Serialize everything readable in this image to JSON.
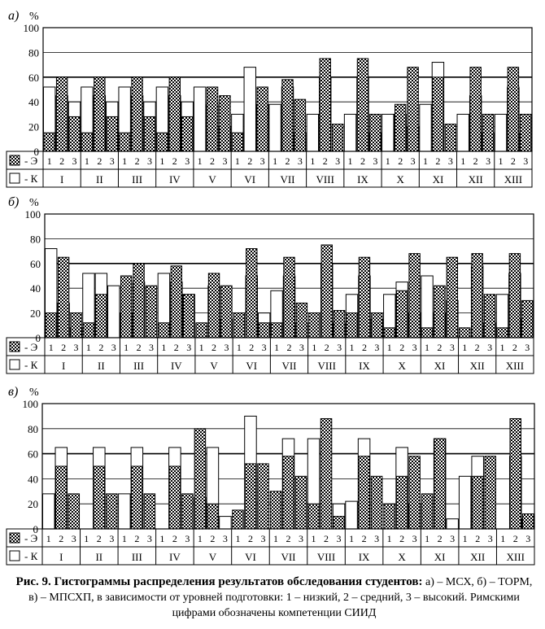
{
  "yticks": {
    "a": [
      "100",
      "80",
      "60",
      "40",
      "20",
      "0"
    ],
    "b": [
      "100",
      "80",
      "60",
      "40",
      "20",
      "0"
    ],
    "c": [
      "100",
      "80",
      "60",
      "40",
      "20",
      "0"
    ]
  },
  "chart_data": [
    {
      "type": "bar",
      "panel_label": "а)",
      "ylabel": "%",
      "ylim": [
        0,
        100
      ],
      "grid": true,
      "legend": [
        {
          "marker": "checkered",
          "label": "- Э"
        },
        {
          "marker": "empty",
          "label": "- К"
        }
      ],
      "level_labels": [
        "1",
        "2",
        "3"
      ],
      "categories": [
        "I",
        "II",
        "III",
        "IV",
        "V",
        "VI",
        "VII",
        "VIII",
        "IX",
        "X",
        "XI",
        "XII",
        "XIII"
      ],
      "series": [
        {
          "name": "Э",
          "values": [
            [
              15,
              60,
              28
            ],
            [
              15,
              60,
              28
            ],
            [
              15,
              60,
              28
            ],
            [
              15,
              60,
              28
            ],
            [
              0,
              52,
              45
            ],
            [
              15,
              0,
              52
            ],
            [
              0,
              58,
              42
            ],
            [
              0,
              75,
              22
            ],
            [
              0,
              75,
              30
            ],
            [
              0,
              38,
              68
            ],
            [
              0,
              60,
              22
            ],
            [
              0,
              68,
              30
            ],
            [
              0,
              68,
              30
            ]
          ]
        },
        {
          "name": "К",
          "values": [
            [
              52,
              45,
              40
            ],
            [
              52,
              45,
              40
            ],
            [
              52,
              45,
              40
            ],
            [
              52,
              45,
              40
            ],
            [
              52,
              38,
              20
            ],
            [
              30,
              68,
              38
            ],
            [
              38,
              52,
              15
            ],
            [
              30,
              60,
              0
            ],
            [
              30,
              60,
              15
            ],
            [
              30,
              30,
              20
            ],
            [
              38,
              72,
              0
            ],
            [
              30,
              45,
              15
            ],
            [
              30,
              52,
              15
            ]
          ]
        }
      ]
    },
    {
      "type": "bar",
      "panel_label": "б)",
      "ylabel": "%",
      "ylim": [
        0,
        100
      ],
      "grid": true,
      "legend": [
        {
          "marker": "checkered",
          "label": "- Э"
        },
        {
          "marker": "empty",
          "label": "- К"
        }
      ],
      "level_labels": [
        "1",
        "2",
        "3"
      ],
      "categories": [
        "I",
        "II",
        "III",
        "IV",
        "V",
        "VI",
        "VII",
        "VIII",
        "IX",
        "X",
        "XI",
        "XII",
        "XIII"
      ],
      "series": [
        {
          "name": "Э",
          "values": [
            [
              20,
              65,
              20
            ],
            [
              12,
              35,
              0
            ],
            [
              50,
              60,
              42
            ],
            [
              12,
              58,
              35
            ],
            [
              12,
              52,
              42
            ],
            [
              20,
              72,
              12
            ],
            [
              12,
              65,
              28
            ],
            [
              20,
              75,
              22
            ],
            [
              20,
              65,
              20
            ],
            [
              8,
              38,
              68
            ],
            [
              8,
              42,
              65
            ],
            [
              8,
              68,
              35
            ],
            [
              8,
              68,
              30
            ]
          ]
        },
        {
          "name": "К",
          "values": [
            [
              72,
              28,
              8
            ],
            [
              52,
              52,
              42
            ],
            [
              20,
              45,
              0
            ],
            [
              52,
              45,
              35
            ],
            [
              0,
              42,
              15
            ],
            [
              0,
              50,
              20
            ],
            [
              38,
              50,
              12
            ],
            [
              0,
              60,
              12
            ],
            [
              35,
              50,
              15
            ],
            [
              35,
              45,
              20
            ],
            [
              50,
              20,
              30
            ],
            [
              0,
              58,
              12
            ],
            [
              35,
              52,
              15
            ]
          ]
        }
      ]
    },
    {
      "type": "bar",
      "panel_label": "в)",
      "ylabel": "%",
      "ylim": [
        0,
        100
      ],
      "grid": true,
      "legend": [
        {
          "marker": "checkered",
          "label": "- Э"
        },
        {
          "marker": "empty",
          "label": "- К"
        }
      ],
      "level_labels": [
        "1",
        "2",
        "3"
      ],
      "categories": [
        "I",
        "II",
        "III",
        "IV",
        "V",
        "VI",
        "VII",
        "VIII",
        "IX",
        "X",
        "XI",
        "XII",
        "XIII"
      ],
      "series": [
        {
          "name": "Э",
          "values": [
            [
              0,
              50,
              28
            ],
            [
              0,
              50,
              28
            ],
            [
              0,
              50,
              28
            ],
            [
              0,
              50,
              28
            ],
            [
              80,
              20,
              0
            ],
            [
              15,
              52,
              52
            ],
            [
              30,
              58,
              42
            ],
            [
              20,
              88,
              10
            ],
            [
              0,
              58,
              42
            ],
            [
              20,
              42,
              58
            ],
            [
              28,
              72,
              0
            ],
            [
              0,
              42,
              58
            ],
            [
              0,
              88,
              12
            ]
          ]
        },
        {
          "name": "К",
          "values": [
            [
              28,
              65,
              0
            ],
            [
              0,
              65,
              0
            ],
            [
              28,
              65,
              0
            ],
            [
              0,
              65,
              0
            ],
            [
              25,
              65,
              10
            ],
            [
              0,
              90,
              0
            ],
            [
              0,
              72,
              0
            ],
            [
              72,
              0,
              20
            ],
            [
              22,
              72,
              0
            ],
            [
              0,
              65,
              20
            ],
            [
              0,
              72,
              8
            ],
            [
              42,
              58,
              0
            ],
            [
              0,
              58,
              8
            ]
          ]
        }
      ]
    }
  ],
  "caption": {
    "bold": "Рис. 9. Гистограммы распределения результатов обследования студентов:",
    "rest": " а) – МСХ, б) – ТОРМ, в) – МПСХП, в зависимости от уровней подготовки: 1 – низкий, 2 – средний, 3 – высокий. Римскими цифрами обозначены компетенции СИИД"
  }
}
